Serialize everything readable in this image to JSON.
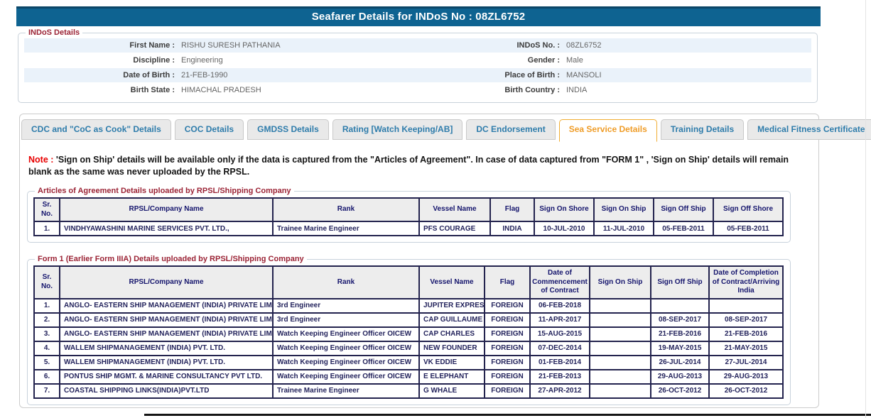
{
  "header": {
    "title": "Seafarer Details for INDoS No : 08ZL6752"
  },
  "indos_details": {
    "legend": "INDoS Details",
    "rows": [
      {
        "left_label": "First Name :",
        "left_value": "RISHU SURESH PATHANIA",
        "right_label": "INDoS No. :",
        "right_value": "08ZL6752"
      },
      {
        "left_label": "Discipline :",
        "left_value": "Engineering",
        "right_label": "Gender :",
        "right_value": "Male"
      },
      {
        "left_label": "Date of Birth :",
        "left_value": "21-FEB-1990",
        "right_label": "Place of Birth :",
        "right_value": "MANSOLI"
      },
      {
        "left_label": "Birth State :",
        "left_value": "HIMACHAL PRADESH",
        "right_label": "Birth Country :",
        "right_value": "INDIA"
      }
    ]
  },
  "tabs": [
    {
      "label": "CDC and \"CoC as Cook\" Details",
      "active": false
    },
    {
      "label": "COC Details",
      "active": false
    },
    {
      "label": "GMDSS Details",
      "active": false
    },
    {
      "label": "Rating [Watch Keeping/AB]",
      "active": false
    },
    {
      "label": "DC Endorsement",
      "active": false
    },
    {
      "label": "Sea Service Details",
      "active": true
    },
    {
      "label": "Training Details",
      "active": false
    },
    {
      "label": "Medical Fitness Certificate",
      "active": false
    }
  ],
  "note": {
    "prefix": "Note :",
    "text": " 'Sign on Ship' details will be available only if the data is captured from the \"Articles of Agreement\". In case of data captured from \"FORM 1\" , 'Sign on Ship' details will remain blank as the same was never uploaded by the RPSL."
  },
  "colors": {
    "header_bar": "#0e6391",
    "legend_red": "#9b2335",
    "tab_blue": "#2e7cab",
    "active_tab_orange": "#ef9c27",
    "table_border_navy": "#23234e",
    "note_red": "#e80000",
    "row_stripe_blue": "#eaf2fa"
  },
  "tables": [
    {
      "legend": "Articles of Agreement Details uploaded by RPSL/Shipping Company",
      "columns": [
        "Sr. No.",
        "RPSL/Company Name",
        "Rank",
        "Vessel Name",
        "Flag",
        "Sign On Shore",
        "Sign On Ship",
        "Sign Off Ship",
        "Sign Off Shore"
      ],
      "rows": [
        [
          "1.",
          "VINDHYAWASHINI MARINE SERVICES PVT. LTD.,",
          "Trainee Marine Engineer",
          "PFS COURAGE",
          "INDIA",
          "10-JUL-2010",
          "11-JUL-2010",
          "05-FEB-2011",
          "05-FEB-2011"
        ]
      ]
    },
    {
      "legend": "Form 1 (Earlier Form IIIA) Details uploaded by RPSL/Shipping Company",
      "columns": [
        "Sr. No.",
        "RPSL/Company Name",
        "Rank",
        "Vessel Name",
        "Flag",
        "Date of Commencement of Contract",
        "Sign On Ship",
        "Sign Off Ship",
        "Date of Completion of Contract/Arriving India"
      ],
      "rows": [
        [
          "1.",
          "ANGLO- EASTERN SHIP MANAGEMENT (INDIA) PRIVATE LIMITED",
          "3rd Engineer",
          "JUPITER EXPRESS",
          "FOREIGN",
          "06-FEB-2018",
          "",
          "",
          ""
        ],
        [
          "2.",
          "ANGLO- EASTERN SHIP MANAGEMENT (INDIA) PRIVATE LIMITED",
          "3rd Engineer",
          "CAP GUILLAUME",
          "FOREIGN",
          "11-APR-2017",
          "",
          "08-SEP-2017",
          "08-SEP-2017"
        ],
        [
          "3.",
          "ANGLO- EASTERN SHIP MANAGEMENT (INDIA) PRIVATE LIMITED",
          "Watch Keeping Engineer Officer OICEW",
          "CAP CHARLES",
          "FOREIGN",
          "15-AUG-2015",
          "",
          "21-FEB-2016",
          "21-FEB-2016"
        ],
        [
          "4.",
          "WALLEM SHIPMANAGEMENT (INDIA) PVT. LTD.",
          "Watch Keeping Engineer Officer OICEW",
          "NEW FOUNDER",
          "FOREIGN",
          "07-DEC-2014",
          "",
          "19-MAY-2015",
          "21-MAY-2015"
        ],
        [
          "5.",
          "WALLEM SHIPMANAGEMENT (INDIA) PVT. LTD.",
          "Watch Keeping Engineer Officer OICEW",
          "VK EDDIE",
          "FOREIGN",
          "01-FEB-2014",
          "",
          "26-JUL-2014",
          "27-JUL-2014"
        ],
        [
          "6.",
          "PONTUS SHIP MGMT. & MARINE CONSULTANCY PVT LTD.",
          "Watch Keeping Engineer Officer OICEW",
          "E ELEPHANT",
          "FOREIGN",
          "21-FEB-2013",
          "",
          "29-AUG-2013",
          "29-AUG-2013"
        ],
        [
          "7.",
          "COASTAL SHIPPING LINKS(INDIA)PVT.LTD",
          "Trainee Marine Engineer",
          "G WHALE",
          "FOREIGN",
          "27-APR-2012",
          "",
          "26-OCT-2012",
          "26-OCT-2012"
        ]
      ]
    }
  ]
}
